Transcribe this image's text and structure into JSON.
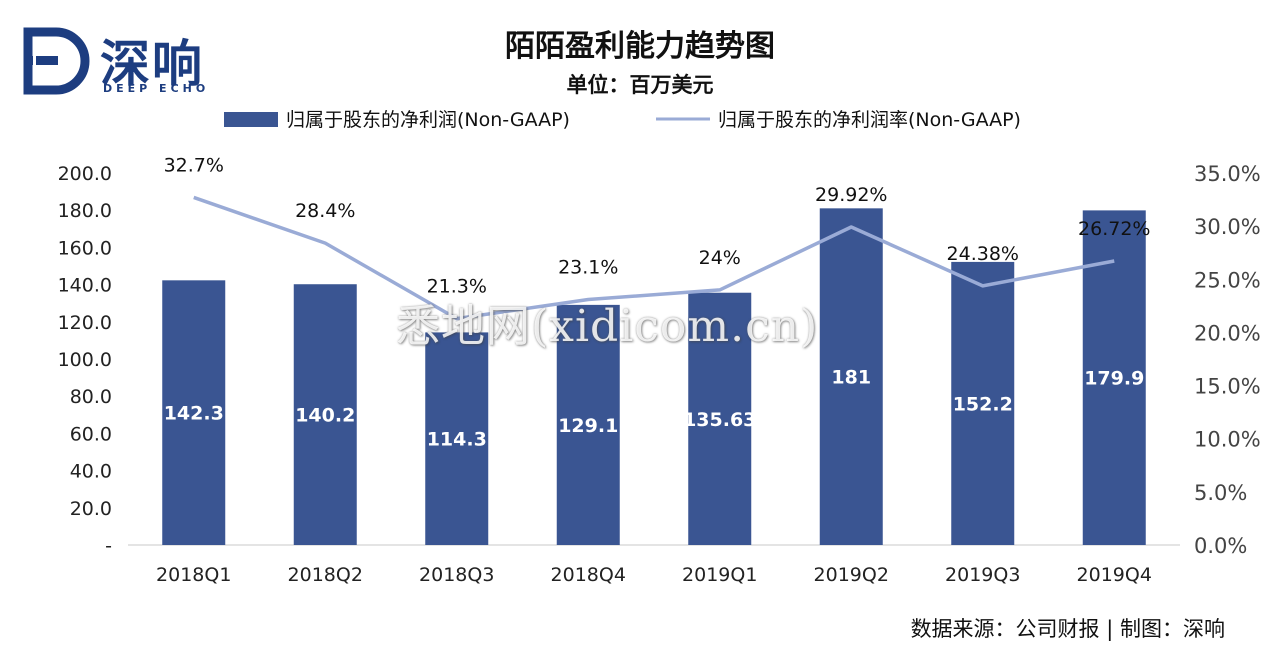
{
  "logo": {
    "name_cn": "深响",
    "name_en": "DEEP ECHO"
  },
  "watermark": "悉地网(xidicom.cn)",
  "chart_data": {
    "type": "bar",
    "title": "陌陌盈利能力趋势图",
    "subtitle": "单位：百万美元",
    "categories": [
      "2018Q1",
      "2018Q2",
      "2018Q3",
      "2018Q4",
      "2019Q1",
      "2019Q2",
      "2019Q3",
      "2019Q4"
    ],
    "series": [
      {
        "name": "归属于股东的净利润(Non-GAAP)",
        "type": "bar",
        "axis": "left",
        "color": "#3a5592",
        "values": [
          142.3,
          140.2,
          114.3,
          129.1,
          135.63,
          181,
          152.2,
          179.9
        ],
        "labels": [
          "142.3",
          "140.2",
          "114.3",
          "129.1",
          "135.63",
          "181",
          "152.2",
          "179.9"
        ]
      },
      {
        "name": "归属于股东的净利润率(Non-GAAP)",
        "type": "line",
        "axis": "right",
        "color": "#9aabd6",
        "values": [
          32.7,
          28.4,
          21.3,
          23.1,
          24,
          29.92,
          24.38,
          26.72
        ],
        "labels": [
          "32.7%",
          "28.4%",
          "21.3%",
          "23.1%",
          "24%",
          "29.92%",
          "24.38%",
          "26.72%"
        ]
      }
    ],
    "y_left": {
      "min": 0,
      "max": 200,
      "step": 20,
      "ticks": [
        "-",
        "20.0",
        "40.0",
        "60.0",
        "80.0",
        "100.0",
        "120.0",
        "140.0",
        "160.0",
        "180.0",
        "200.0"
      ]
    },
    "y_right": {
      "min": 0,
      "max": 35,
      "step": 5,
      "ticks": [
        "0.0%",
        "5.0%",
        "10.0%",
        "15.0%",
        "20.0%",
        "25.0%",
        "30.0%",
        "35.0%"
      ]
    },
    "grid": false,
    "legend_position": "top"
  },
  "source_note": "数据来源：公司财报 | 制图：深响"
}
